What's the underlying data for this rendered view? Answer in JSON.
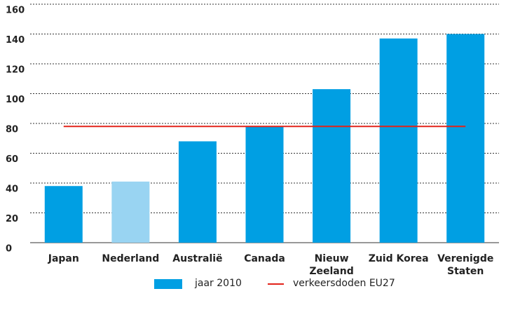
{
  "chart_data": {
    "type": "bar",
    "categories": [
      "Japan",
      "Nederland",
      "Australië",
      "Canada",
      "Nieuw Zeeland",
      "Zuid Korea",
      "Verenigde Staten"
    ],
    "series": [
      {
        "name": "jaar 2010",
        "color": "#009fe3",
        "colors": [
          "#009fe3",
          "#99d4f2",
          "#009fe3",
          "#009fe3",
          "#009fe3",
          "#009fe3",
          "#009fe3"
        ],
        "values": [
          38,
          41,
          68,
          78,
          103,
          137,
          140
        ]
      }
    ],
    "reference_line": {
      "name": "verkeersdoden EU27",
      "color": "#e2231a",
      "value": 78
    },
    "ylim": [
      0,
      160
    ],
    "yticks": [
      0,
      20,
      40,
      60,
      80,
      100,
      120,
      140,
      160
    ],
    "grid": true
  }
}
